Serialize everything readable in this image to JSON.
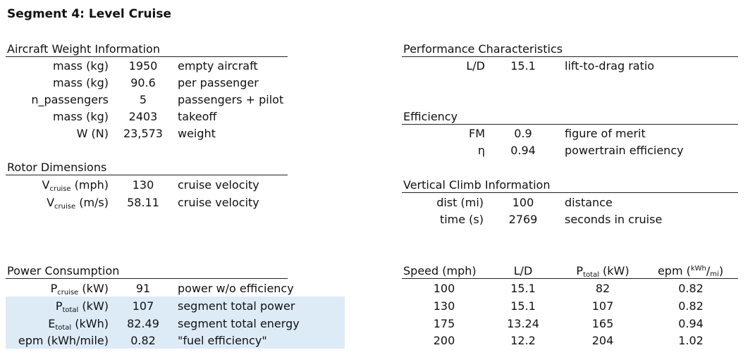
{
  "title": "Segment 4: Level Cruise",
  "weight": {
    "header": "Aircraft Weight Information",
    "rows": [
      {
        "label": "mass (kg)",
        "value": "1950",
        "desc": "empty aircraft"
      },
      {
        "label": "mass (kg)",
        "value": "90.6",
        "desc": "per passenger"
      },
      {
        "label": "n_passengers",
        "value": "5",
        "desc": "passengers + pilot"
      },
      {
        "label": "mass (kg)",
        "value": "2403",
        "desc": "takeoff"
      },
      {
        "label": "W (N)",
        "value": "23,573",
        "desc": "weight"
      }
    ]
  },
  "rotor": {
    "header": "Rotor Dimensions",
    "rows": [
      {
        "label_main": "V",
        "label_sub": "cruise",
        "label_unit": " (mph)",
        "value": "130",
        "desc": "cruise velocity"
      },
      {
        "label_main": "V",
        "label_sub": "cruise",
        "label_unit": " (m/s)",
        "value": "58.11",
        "desc": "cruise velocity"
      }
    ]
  },
  "power": {
    "header": "Power Consumption",
    "rows": [
      {
        "label_main": "P",
        "label_sub": "cruise",
        "label_unit": " (kW)",
        "value": "91",
        "desc": "power w/o efficiency"
      },
      {
        "label_main": "P",
        "label_sub": "total",
        "label_unit": " (kW)",
        "value": "107",
        "desc": "segment total power"
      },
      {
        "label_main": "E",
        "label_sub": "total",
        "label_unit": " (kWh)",
        "value": "82.49",
        "desc": "segment total energy"
      },
      {
        "label_main": "epm (kWh/mile)",
        "label_sub": "",
        "label_unit": "",
        "value": "0.82",
        "desc": "\"fuel efficiency\""
      }
    ],
    "highlight_color": "#ddebf7"
  },
  "performance": {
    "header": "Performance Characteristics",
    "rows": [
      {
        "label": "L/D",
        "value": "15.1",
        "desc": "lift-to-drag ratio"
      }
    ]
  },
  "efficiency": {
    "header": "Efficiency",
    "rows": [
      {
        "label": "FM",
        "value": "0.9",
        "desc": "figure of merit"
      },
      {
        "label": "η",
        "value": "0.94",
        "desc": "powertrain efficiency"
      }
    ]
  },
  "climb": {
    "header": "Vertical Climb Information",
    "rows": [
      {
        "label": "dist (mi)",
        "value": "100",
        "desc": "distance"
      },
      {
        "label": "time (s)",
        "value": "2769",
        "desc": "seconds in cruise"
      }
    ]
  },
  "speed_table": {
    "headers": {
      "speed": "Speed (mph)",
      "ld": "L/D",
      "ptotal_main": "P",
      "ptotal_sub": "total",
      "ptotal_unit": " (kW)",
      "epm_main": "epm (",
      "epm_sup": "kWh",
      "epm_slash": "/",
      "epm_sub": "mi",
      "epm_close": ")"
    },
    "rows": [
      {
        "speed": "100",
        "ld": "15.1",
        "ptotal": "82",
        "epm": "0.82"
      },
      {
        "speed": "130",
        "ld": "15.1",
        "ptotal": "107",
        "epm": "0.82"
      },
      {
        "speed": "175",
        "ld": "13.24",
        "ptotal": "165",
        "epm": "0.94"
      },
      {
        "speed": "200",
        "ld": "12.2",
        "ptotal": "204",
        "epm": "1.02"
      }
    ]
  }
}
